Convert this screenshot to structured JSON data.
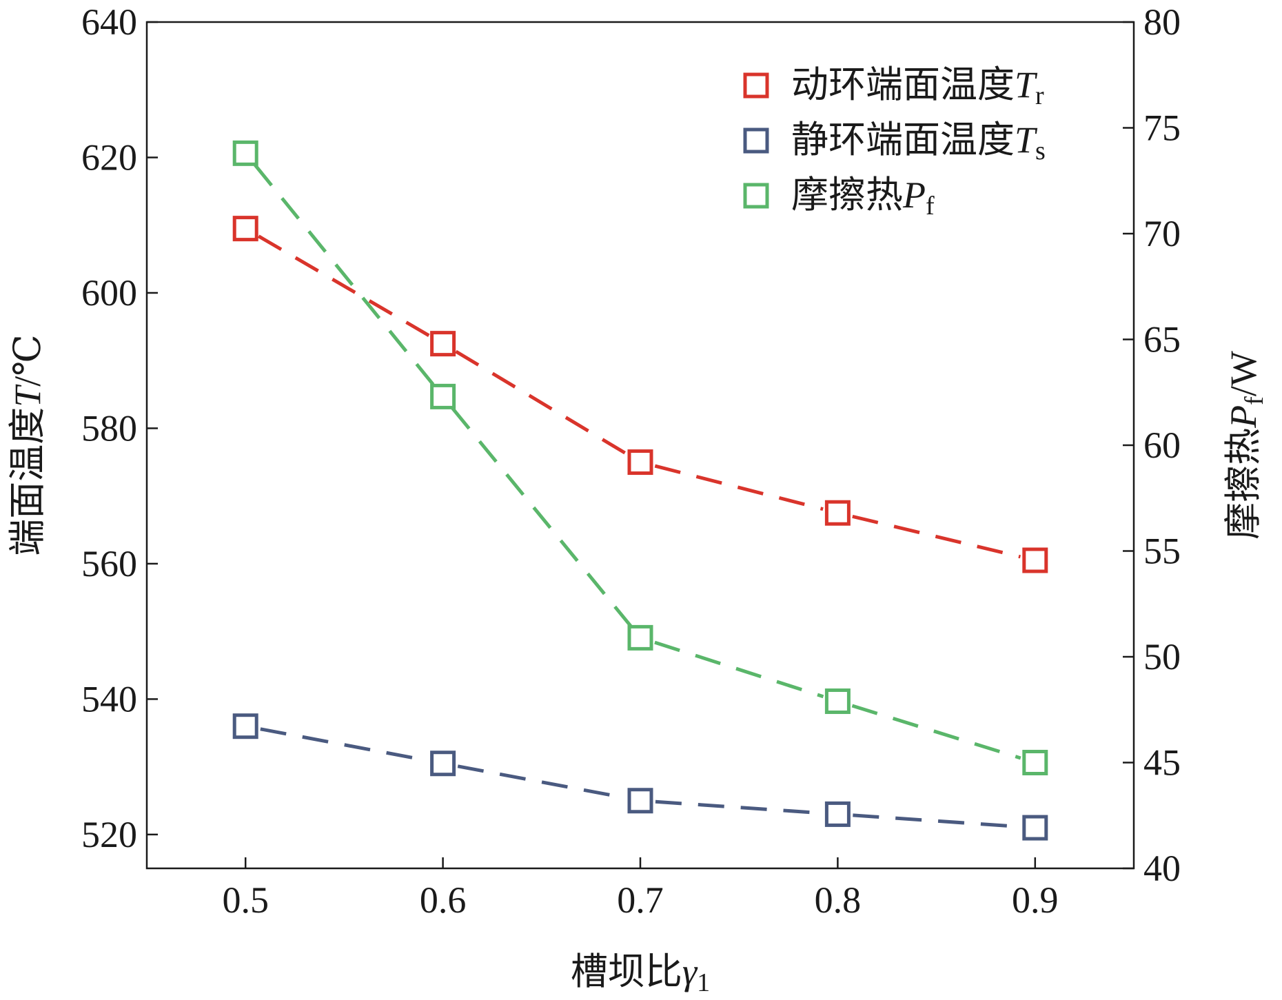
{
  "chart_data": {
    "type": "line",
    "x": [
      0.5,
      0.6,
      0.7,
      0.8,
      0.9
    ],
    "x_tick_labels": [
      "0.5",
      "0.6",
      "0.7",
      "0.8",
      "0.9"
    ],
    "xlim": [
      0.45,
      0.95
    ],
    "xlabel": {
      "text": "槽坝比",
      "symbol": "γ",
      "subscript": "1"
    },
    "y_left": {
      "label": {
        "text": "端面温度",
        "symbol": "T",
        "unit": "/℃"
      },
      "lim": [
        515,
        640
      ],
      "ticks": [
        520,
        540,
        560,
        580,
        600,
        620,
        640
      ],
      "tick_labels": [
        "520",
        "540",
        "560",
        "580",
        "600",
        "620",
        "640"
      ]
    },
    "y_right": {
      "label": {
        "text": "摩擦热",
        "symbol": "P",
        "subscript": "f",
        "unit": "/W"
      },
      "lim": [
        40,
        80
      ],
      "ticks": [
        40,
        45,
        50,
        55,
        60,
        65,
        70,
        75,
        80
      ],
      "tick_labels": [
        "40",
        "45",
        "50",
        "55",
        "60",
        "65",
        "70",
        "75",
        "80"
      ]
    },
    "legend_position": "top-right",
    "grid": false,
    "series": [
      {
        "name": "动环端面温度",
        "symbol": "T",
        "subscript": "r",
        "axis": "left",
        "color": "#d9342b",
        "marker": "open-square",
        "line_style": "dashed",
        "values": [
          609.5,
          592.5,
          575.0,
          567.5,
          560.5
        ]
      },
      {
        "name": "静环端面温度",
        "symbol": "T",
        "subscript": "s",
        "axis": "left",
        "color": "#4a5a80",
        "marker": "open-square",
        "line_style": "dashed",
        "values": [
          536.0,
          530.5,
          525.0,
          523.0,
          521.0
        ]
      },
      {
        "name": "摩擦热",
        "symbol": "P",
        "subscript": "f",
        "axis": "right",
        "color": "#5ab66a",
        "marker": "open-square",
        "line_style": "dashed",
        "values": [
          73.8,
          62.3,
          50.9,
          47.9,
          45.0
        ]
      }
    ]
  }
}
